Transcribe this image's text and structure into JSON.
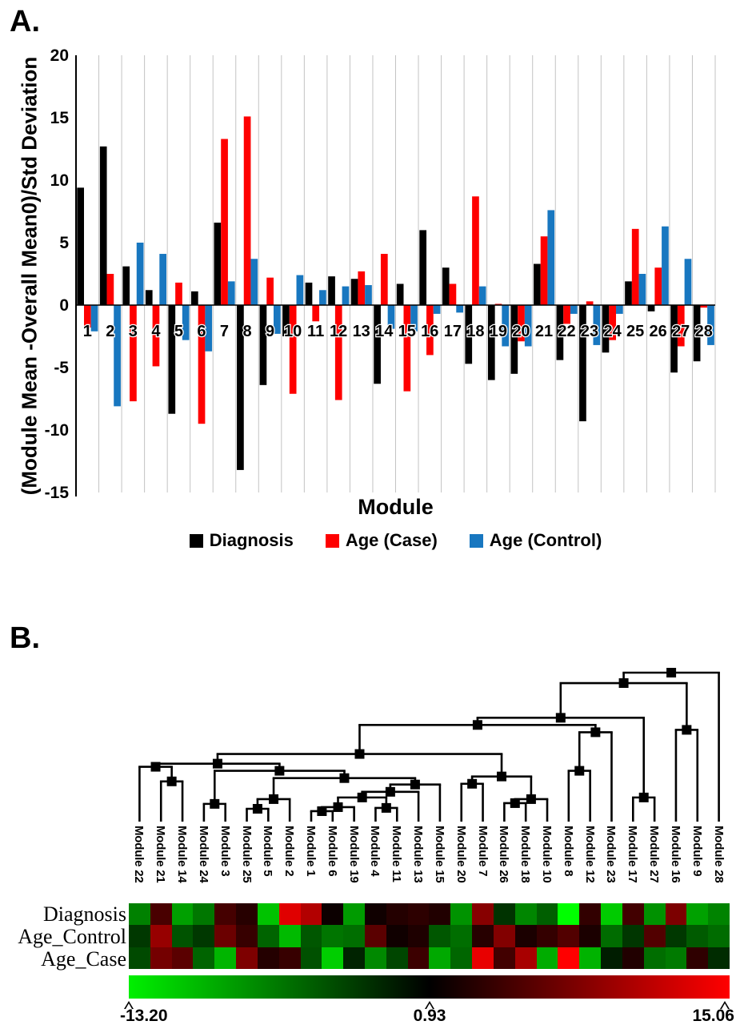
{
  "panel_a": {
    "label": "A.",
    "y_ticks": [
      20,
      15,
      10,
      5,
      0,
      -5,
      -10,
      -15
    ],
    "ylim": [
      -15,
      20
    ],
    "gridlines": "vertical-category-boundaries"
  },
  "panel_b": {
    "label": "B.",
    "row_labels": [
      "Diagnosis",
      "Age_Control",
      "Age_Case"
    ],
    "row_series": [
      "Diagnosis",
      "Age (Control)",
      "Age (Case)"
    ],
    "leaf_order": [
      "Module 22",
      "Module 21",
      "Module 14",
      "Module 24",
      "Module 3",
      "Module 25",
      "Module 5",
      "Module 2",
      "Module 1",
      "Module 6",
      "Module 19",
      "Module 4",
      "Module 11",
      "Module 13",
      "Module 15",
      "Module 20",
      "Module 7",
      "Module 26",
      "Module 18",
      "Module 10",
      "Module 8",
      "Module 12",
      "Module 23",
      "Module 17",
      "Module 27",
      "Module 16",
      "Module 9",
      "Module 28"
    ],
    "dendrogram_merges": [
      {
        "id": "A",
        "a": "Module 21",
        "b": "Module 14",
        "h": 0.27
      },
      {
        "id": "B",
        "a": "Module 22",
        "b": "#A",
        "h": 0.368
      },
      {
        "id": "C",
        "a": "Module 24",
        "b": "Module 3",
        "h": 0.119
      },
      {
        "id": "D",
        "a": "Module 25",
        "b": "Module 5",
        "h": 0.086
      },
      {
        "id": "E",
        "a": "#D",
        "b": "Module 2",
        "h": 0.151
      },
      {
        "id": "F",
        "a": "Module 1",
        "b": "Module 6",
        "h": 0.07
      },
      {
        "id": "G",
        "a": "#F",
        "b": "Module 19",
        "h": 0.097
      },
      {
        "id": "H",
        "a": "Module 4",
        "b": "Module 11",
        "h": 0.092
      },
      {
        "id": "I",
        "a": "#G",
        "b": "#H",
        "h": 0.162
      },
      {
        "id": "J",
        "a": "#I",
        "b": "Module 13",
        "h": 0.2
      },
      {
        "id": "K",
        "a": "#J",
        "b": "Module 15",
        "h": 0.249
      },
      {
        "id": "L",
        "a": "#E",
        "b": "#K",
        "h": 0.292
      },
      {
        "id": "M",
        "a": "#C",
        "b": "#L",
        "h": 0.341
      },
      {
        "id": "N",
        "a": "#B",
        "b": "#M",
        "h": 0.389
      },
      {
        "id": "c1",
        "a": "Module 20",
        "b": "Module 7",
        "h": 0.254
      },
      {
        "id": "c2",
        "a": "Module 26",
        "b": "Module 18",
        "h": 0.124
      },
      {
        "id": "c3",
        "a": "#c2",
        "b": "Module 10",
        "h": 0.151
      },
      {
        "id": "c4",
        "a": "#c1",
        "b": "#c3",
        "h": 0.303
      },
      {
        "id": "P",
        "a": "#N",
        "b": "#c4",
        "h": 0.454
      },
      {
        "id": "c5",
        "a": "Module 8",
        "b": "Module 12",
        "h": 0.341
      },
      {
        "id": "R0",
        "a": "#c5",
        "b": "Module 23",
        "h": 0.6
      },
      {
        "id": "Q",
        "a": "#P",
        "b": "#R0",
        "h": 0.649
      },
      {
        "id": "R1",
        "a": "Module 17",
        "b": "Module 27",
        "h": 0.162
      },
      {
        "id": "R2",
        "a": "#Q",
        "b": "#R1",
        "h": 0.697
      },
      {
        "id": "R3",
        "a": "Module 16",
        "b": "Module 9",
        "h": 0.616
      },
      {
        "id": "R4",
        "a": "#R2",
        "b": "#R3",
        "h": 0.93
      },
      {
        "id": "ROOT",
        "a": "#R4",
        "b": "Module 28",
        "h": 1.0
      }
    ],
    "color_scale": {
      "min": -13.2,
      "mid": 0.93,
      "max": 15.06,
      "min_label": "-13.20",
      "mid_label": "0.93",
      "max_label": "15.06",
      "min_color": "#00ff00",
      "mid_color": "#000000",
      "max_color": "#ff0000"
    }
  },
  "chart_data": [
    {
      "type": "bar",
      "title": "",
      "xlabel": "Module",
      "ylabel": "(Module Mean -Overall  Mean0)/Std Deviation",
      "ylim": [
        -15,
        20
      ],
      "categories": [
        1,
        2,
        3,
        4,
        5,
        6,
        7,
        8,
        9,
        10,
        11,
        12,
        13,
        14,
        15,
        16,
        17,
        18,
        19,
        20,
        21,
        22,
        23,
        24,
        25,
        26,
        27,
        28
      ],
      "legend_position": "bottom",
      "series": [
        {
          "name": "Diagnosis",
          "color": "#000000",
          "values": [
            9.4,
            12.7,
            3.1,
            1.2,
            -8.7,
            1.1,
            6.6,
            -13.2,
            -6.4,
            -2.5,
            1.8,
            2.3,
            2.1,
            -6.3,
            1.7,
            6.0,
            3.0,
            -4.7,
            -6.0,
            -5.5,
            3.3,
            -4.4,
            -9.3,
            -3.8,
            1.9,
            -0.5,
            -5.4,
            -4.5
          ]
        },
        {
          "name": "Age (Case)",
          "color": "#fe0000",
          "values": [
            -1.8,
            2.5,
            -7.7,
            -4.9,
            1.8,
            -9.5,
            13.3,
            15.1,
            2.2,
            -7.1,
            -1.3,
            -7.6,
            2.7,
            4.1,
            -6.9,
            -4.0,
            1.7,
            8.7,
            0.1,
            -2.9,
            5.5,
            -1.5,
            0.3,
            -2.8,
            6.1,
            3.0,
            -3.3,
            -0.2
          ]
        },
        {
          "name": "Age (Control)",
          "color": "#1877c0",
          "values": [
            -2.1,
            -8.1,
            5.0,
            4.1,
            -2.8,
            -3.7,
            1.9,
            3.7,
            -2.3,
            2.4,
            1.2,
            1.5,
            1.6,
            -1.9,
            -2.1,
            -0.7,
            -0.6,
            1.5,
            -3.3,
            -3.3,
            7.6,
            -0.7,
            -3.2,
            -0.7,
            2.5,
            6.3,
            3.7,
            -3.2
          ]
        }
      ]
    },
    {
      "type": "heatmap",
      "rows": [
        "Diagnosis",
        "Age_Control",
        "Age_Case"
      ],
      "rows_use_series": [
        "Diagnosis",
        "Age (Control)",
        "Age (Case)"
      ],
      "columns_are_leaf_order": true,
      "colorscale": {
        "min": -13.2,
        "mid": 0.93,
        "max": 15.06,
        "low": "green",
        "mid_c": "black",
        "high": "red"
      }
    }
  ]
}
